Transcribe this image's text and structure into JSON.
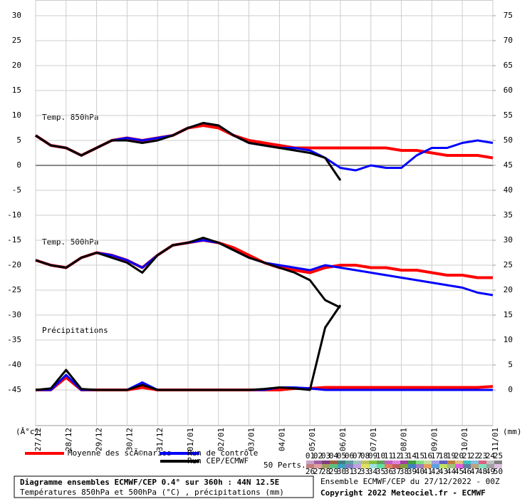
{
  "chart_data": {
    "type": "line",
    "panel_labels": [
      "Temp. 850hPa",
      "Temp. 500hPa",
      "Précipitations"
    ],
    "y_label": "(Â°c)",
    "y2_label": "(mm)",
    "categories": [
      "27/12",
      null,
      "28/12",
      null,
      "29/12",
      null,
      "30/12",
      null,
      "31/12",
      null,
      "01/01",
      null,
      "02/01",
      null,
      "03/01",
      null,
      "04/01",
      null,
      "05/01",
      null,
      "06/01",
      null,
      "07/01",
      null,
      "08/01",
      null,
      "09/01",
      null,
      "10/01",
      null,
      "11/01"
    ],
    "ylim": [
      -52,
      30
    ],
    "yticks": [
      30,
      25,
      20,
      15,
      10,
      5,
      0,
      -5,
      -10,
      -15,
      -20,
      -25,
      -30,
      -35,
      -40,
      -45
    ],
    "y2lim": [
      -7,
      75
    ],
    "y2ticks": [
      75,
      70,
      65,
      60,
      55,
      50,
      45,
      40,
      35,
      30,
      25,
      20,
      15,
      10,
      5,
      0
    ],
    "grid": true,
    "series": [
      {
        "name": "Moyenne des scÃ©narios",
        "color": "#ff0000",
        "width": 4,
        "t850": [
          6,
          4,
          3.5,
          2,
          3.5,
          5,
          5.5,
          5,
          5.5,
          6,
          7.5,
          8,
          7.5,
          6,
          5,
          4.5,
          4,
          3.5,
          3.5,
          3.5,
          3.5,
          3.5,
          3.5,
          3.5,
          3,
          3,
          2.5,
          2,
          2,
          2,
          1.5
        ],
        "t500": [
          -19,
          -20,
          -20.5,
          -18.5,
          -17.5,
          -18,
          -19,
          -20.5,
          -18,
          -16,
          -15.5,
          -15,
          -15.5,
          -16.5,
          -18,
          -19.5,
          -20.5,
          -21,
          -21.5,
          -20.5,
          -20,
          -20,
          -20.5,
          -20.5,
          -21,
          -21,
          -21.5,
          -22,
          -22,
          -22.5,
          -22.5
        ],
        "precip": [
          0,
          0,
          2.5,
          0,
          0,
          0,
          0,
          0.5,
          0,
          0,
          0,
          0,
          0,
          0,
          0,
          0,
          0,
          0.3,
          0.3,
          0.5,
          0.5,
          0.5,
          0.5,
          0.5,
          0.5,
          0.5,
          0.5,
          0.5,
          0.5,
          0.5,
          0.7
        ]
      },
      {
        "name": "Run de contrôle",
        "color": "#0000ff",
        "width": 3,
        "t850": [
          6,
          4,
          3.5,
          2,
          3.5,
          5,
          5.5,
          5,
          5.5,
          6,
          7.5,
          8.5,
          8,
          6,
          4.5,
          4,
          3.5,
          3.5,
          3,
          1.5,
          -0.5,
          -1,
          0,
          -0.5,
          -0.5,
          2,
          3.5,
          3.5,
          4.5,
          5,
          4.5
        ],
        "t500": [
          -19,
          -20,
          -20.5,
          -18.5,
          -17.5,
          -18,
          -19,
          -20.5,
          -18,
          -16,
          -15.5,
          -15,
          -15.5,
          -17,
          -18.5,
          -19.5,
          -20,
          -20.5,
          -21,
          -20,
          -20.5,
          -21,
          -21.5,
          -22,
          -22.5,
          -23,
          -23.5,
          -24,
          -24.5,
          -25.5,
          -26
        ],
        "precip": [
          0,
          0,
          3,
          0,
          0,
          0,
          0,
          1.5,
          0,
          0,
          0,
          0,
          0,
          0,
          0,
          0,
          0.5,
          0.5,
          0.3,
          0,
          0,
          0,
          0,
          0,
          0,
          0,
          0,
          0,
          0,
          0,
          0
        ]
      },
      {
        "name": "Run CEP/ECMWF",
        "color": "#000000",
        "width": 3,
        "t850": [
          6,
          4,
          3.5,
          2,
          3.5,
          5,
          5,
          4.5,
          5,
          6,
          7.5,
          8.5,
          8,
          6,
          4.5,
          4,
          3.5,
          3,
          2.5,
          1.5,
          -3,
          null,
          null,
          null,
          null,
          null,
          null,
          null,
          null,
          null,
          null
        ],
        "t500": [
          -19,
          -20,
          -20.5,
          -18.5,
          -17.5,
          -18.5,
          -19.5,
          -21.5,
          -18,
          -16,
          -15.5,
          -14.5,
          -15.5,
          -17,
          -18.5,
          -19.5,
          -20.5,
          -21.5,
          -23,
          -27,
          -28.5,
          null,
          null,
          null,
          null,
          null,
          null,
          null,
          null,
          null,
          null
        ],
        "precip": [
          0,
          0.3,
          4,
          0.2,
          0,
          0,
          0,
          1,
          0,
          0,
          0,
          0,
          0,
          0,
          0,
          0.2,
          0.5,
          0.3,
          0,
          12.5,
          17,
          null,
          null,
          null,
          null,
          null,
          null,
          null,
          null,
          null,
          null
        ]
      }
    ],
    "perturbations_label": "50 Perts.",
    "perturbations": [
      {
        "label": "01",
        "color": "#c8a0c8"
      },
      {
        "label": "02",
        "color": "#a060a0"
      },
      {
        "label": "03",
        "color": "#804080"
      },
      {
        "label": "04",
        "color": "#a06040"
      },
      {
        "label": "05",
        "color": "#408080"
      },
      {
        "label": "06",
        "color": "#60a0a0"
      },
      {
        "label": "07",
        "color": "#a0c0c0"
      },
      {
        "label": "08",
        "color": "#c0c060"
      },
      {
        "label": "09",
        "color": "#80c040"
      },
      {
        "label": "10",
        "color": "#60a060"
      },
      {
        "label": "11",
        "color": "#c060c0"
      },
      {
        "label": "12",
        "color": "#e080e0"
      },
      {
        "label": "13",
        "color": "#a040a0"
      },
      {
        "label": "14",
        "color": "#40a040"
      },
      {
        "label": "15",
        "color": "#80e080"
      },
      {
        "label": "16",
        "color": "#c0e0a0"
      },
      {
        "label": "17",
        "color": "#a0a0e0"
      },
      {
        "label": "18",
        "color": "#6060c0"
      },
      {
        "label": "19",
        "color": "#c08040"
      },
      {
        "label": "20",
        "color": "#e0c080"
      },
      {
        "label": "21",
        "color": "#40c0c0"
      },
      {
        "label": "22",
        "color": "#80c0e0"
      },
      {
        "label": "23",
        "color": "#e06080"
      },
      {
        "label": "24",
        "color": "#c0c0c0"
      },
      {
        "label": "25",
        "color": "#808080"
      },
      {
        "label": "26",
        "color": "#c08080"
      },
      {
        "label": "27",
        "color": "#e0a0a0"
      },
      {
        "label": "28",
        "color": "#a0a060"
      },
      {
        "label": "29",
        "color": "#60c080"
      },
      {
        "label": "30",
        "color": "#40a0c0"
      },
      {
        "label": "31",
        "color": "#8080c0"
      },
      {
        "label": "32",
        "color": "#c0a0e0"
      },
      {
        "label": "33",
        "color": "#e0e060"
      },
      {
        "label": "34",
        "color": "#a0e0e0"
      },
      {
        "label": "35",
        "color": "#60e0a0"
      },
      {
        "label": "36",
        "color": "#e08060"
      },
      {
        "label": "37",
        "color": "#c06060"
      },
      {
        "label": "38",
        "color": "#80a040"
      },
      {
        "label": "39",
        "color": "#4080c0"
      },
      {
        "label": "40",
        "color": "#a080c0"
      },
      {
        "label": "41",
        "color": "#e0a060"
      },
      {
        "label": "42",
        "color": "#60a0e0"
      },
      {
        "label": "43",
        "color": "#c0e060"
      },
      {
        "label": "44",
        "color": "#a0c080"
      },
      {
        "label": "45",
        "color": "#e060e0"
      },
      {
        "label": "46",
        "color": "#6080a0"
      },
      {
        "label": "47",
        "color": "#c0a080"
      },
      {
        "label": "48",
        "color": "#80e0c0"
      },
      {
        "label": "49",
        "color": "#a0a0a0"
      },
      {
        "label": "50",
        "color": "#e0c0e0"
      }
    ],
    "footer": {
      "title": "Diagramme ensembles ECMWF/CEP 0.4° sur 360h : 44N 12.5E",
      "subtitle": "Températures 850hPa et 500hPa (°C) , précipitations (mm)",
      "run": "Ensemble ECMWF/CEP du 27/12/2022 - 00Z",
      "copyright": "Copyright 2022 Meteociel.fr - ECMWF"
    }
  }
}
